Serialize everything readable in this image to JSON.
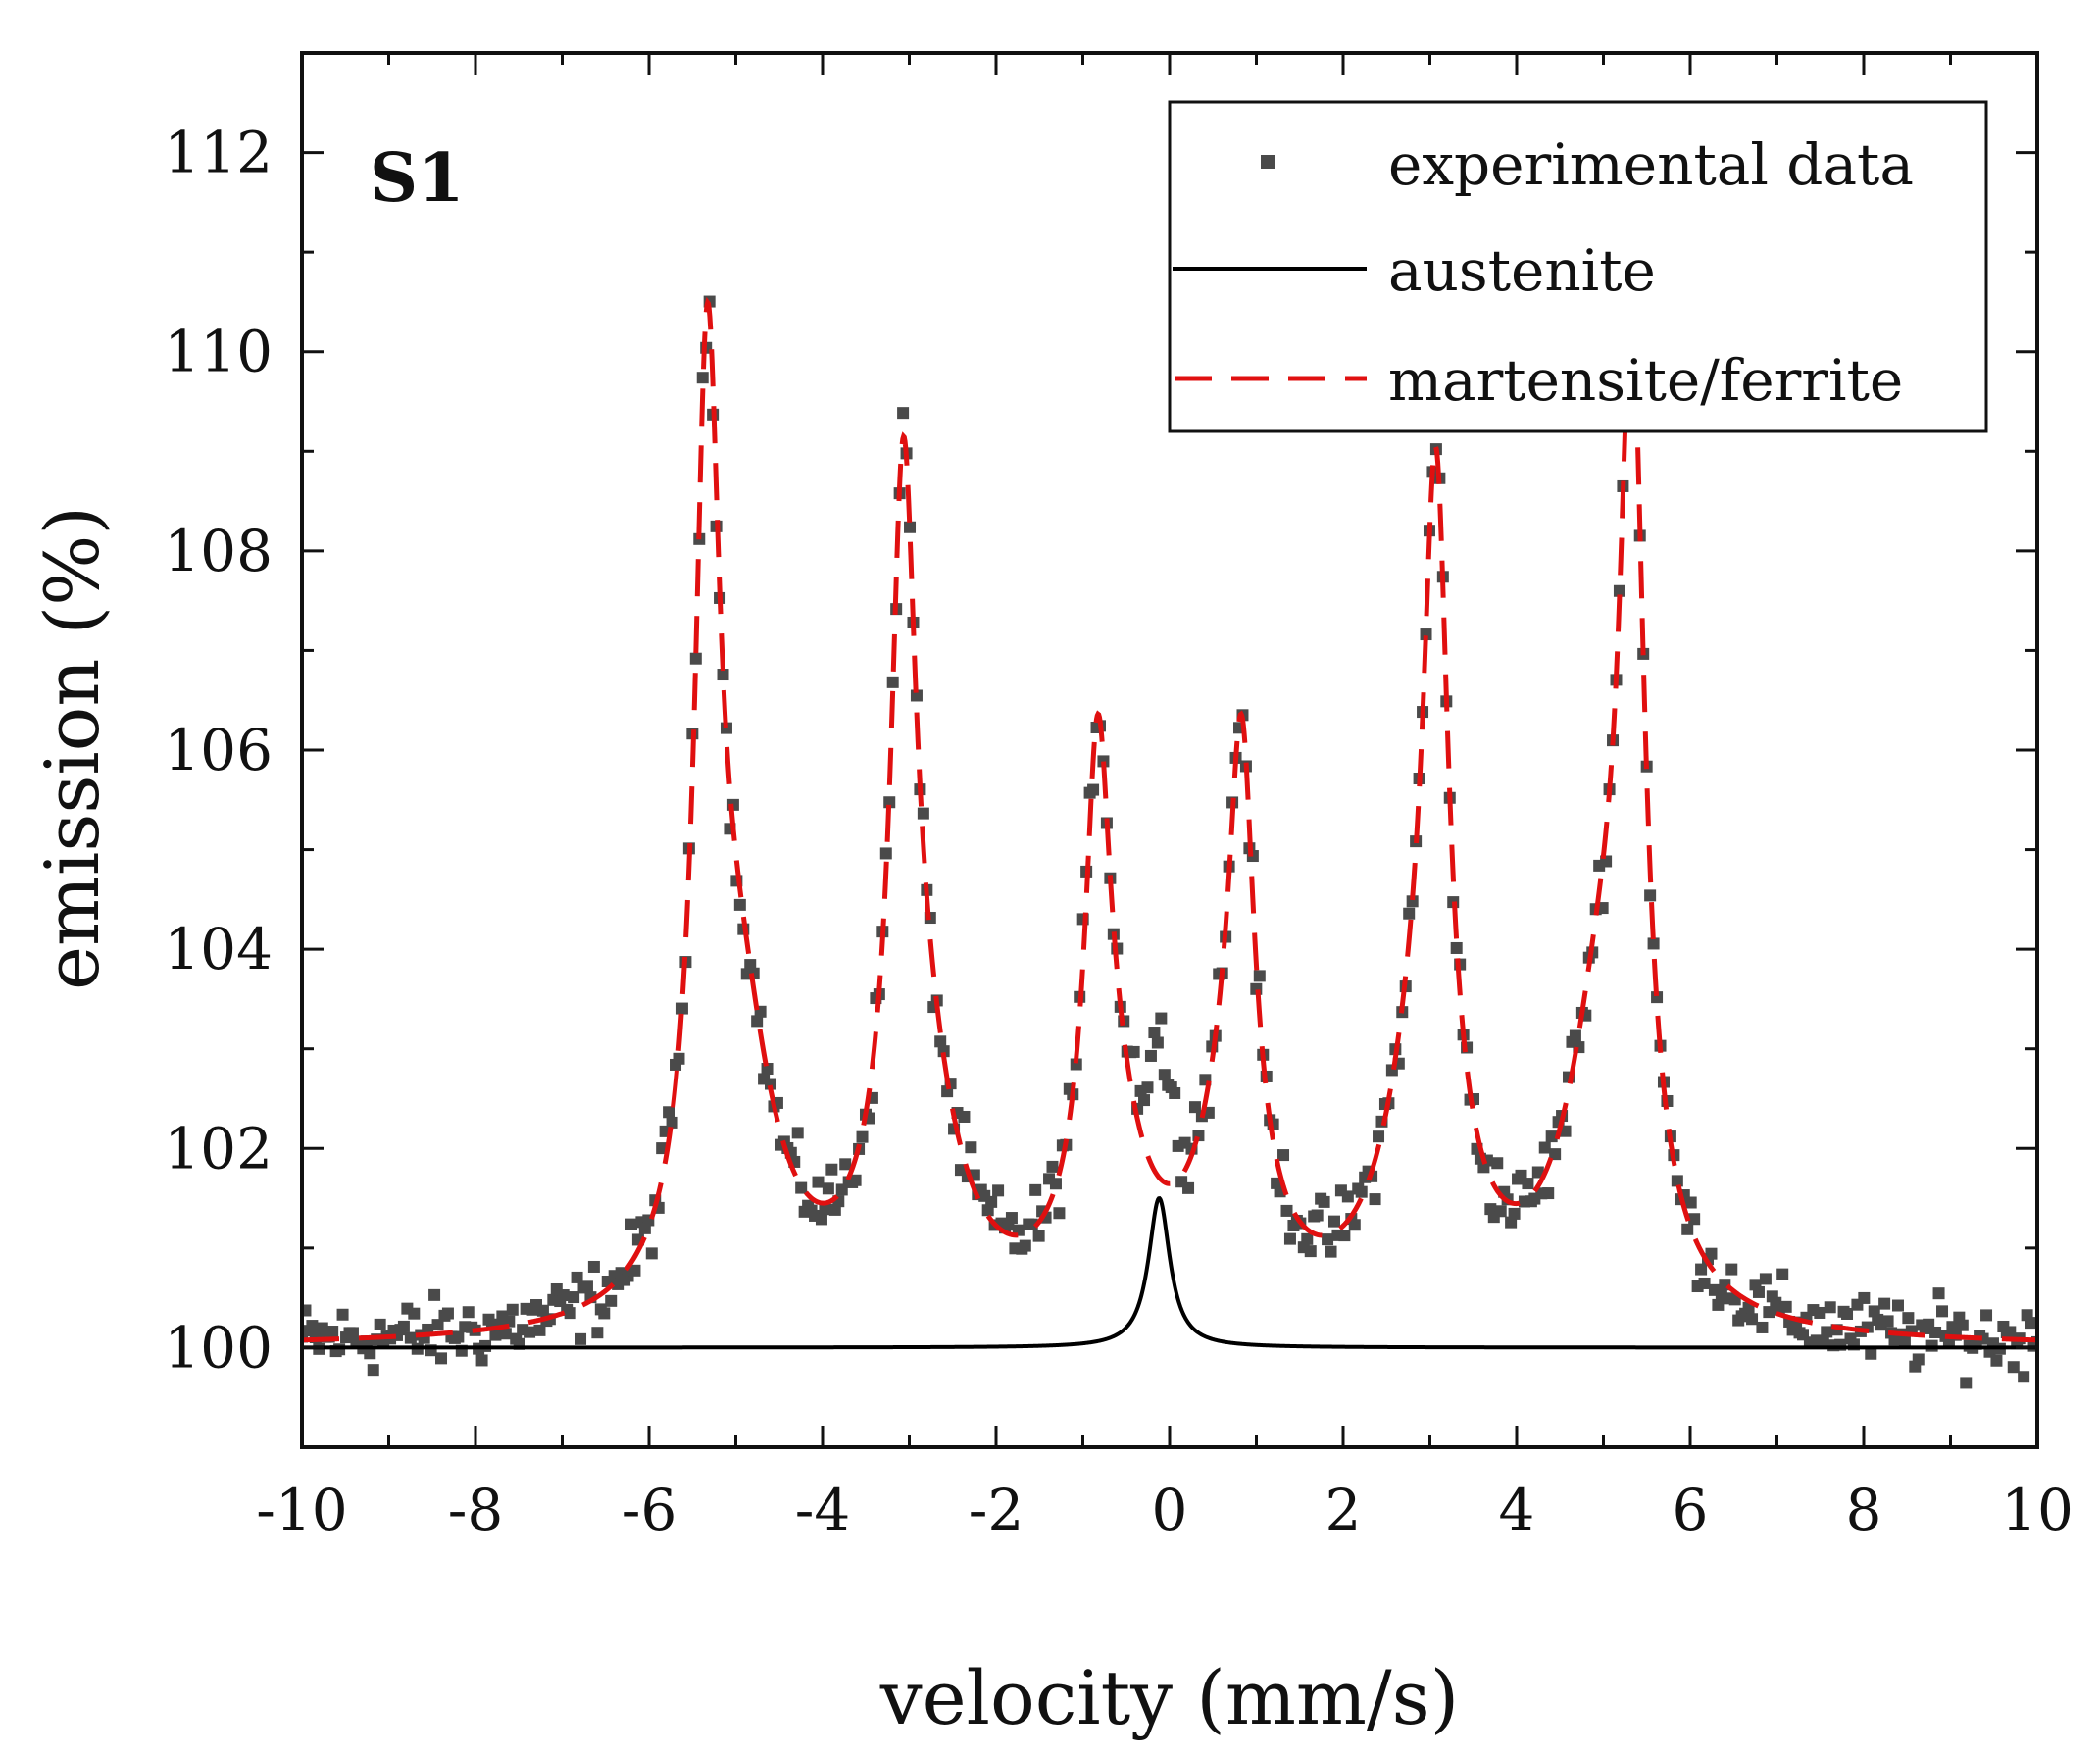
{
  "chart_data": {
    "type": "scatter",
    "title": "",
    "panel_label": "S1",
    "xlabel": "velocity (mm/s)",
    "ylabel": "emission (%)",
    "xlim": [
      -10,
      10
    ],
    "ylim": [
      99,
      113
    ],
    "x_ticks": [
      -10,
      -8,
      -6,
      -4,
      -2,
      0,
      2,
      4,
      6,
      8,
      10
    ],
    "x_tick_labels": [
      "-10",
      "-8",
      "-6",
      "-4",
      "-2",
      "0",
      "2",
      "4",
      "6",
      "8",
      "10"
    ],
    "y_ticks": [
      100,
      102,
      104,
      106,
      108,
      110,
      112
    ],
    "y_tick_labels": [
      "100",
      "102",
      "104",
      "106",
      "108",
      "110",
      "112"
    ],
    "legend": {
      "position": "top-right",
      "entries": [
        {
          "label": "experimental data",
          "style": "square-markers",
          "color": "#4a4a4a"
        },
        {
          "label": "austenite",
          "style": "solid-line",
          "color": "#000000"
        },
        {
          "label": "martensite/ferrite",
          "style": "dashed-line",
          "color": "#e01010"
        }
      ]
    },
    "series": [
      {
        "name": "experimental data",
        "kind": "points",
        "color": "#4a4a4a",
        "x_range": [
          -10,
          10
        ],
        "point_count": 512,
        "noise_amplitude": 0.25,
        "description": "sum of the two fitted components plus measurement scatter"
      },
      {
        "name": "austenite",
        "kind": "lorentzian",
        "color": "#000000",
        "baseline": 100,
        "peaks": [
          {
            "center": -0.12,
            "amplitude": 1.5,
            "hwhm": 0.15
          }
        ]
      },
      {
        "name": "martensite/ferrite",
        "kind": "lorentzian",
        "color": "#e01010",
        "baseline": 100,
        "peaks": [
          {
            "center": -5.33,
            "amplitude": 8.2,
            "hwhm": 0.17
          },
          {
            "center": -3.07,
            "amplitude": 6.6,
            "hwhm": 0.17
          },
          {
            "center": -0.83,
            "amplitude": 4.2,
            "hwhm": 0.17
          },
          {
            "center": 0.83,
            "amplitude": 4.2,
            "hwhm": 0.17
          },
          {
            "center": 3.07,
            "amplitude": 6.5,
            "hwhm": 0.17
          },
          {
            "center": 5.33,
            "amplitude": 8.1,
            "hwhm": 0.17
          },
          {
            "center": -5.0,
            "amplitude": 3.0,
            "hwhm": 0.5
          },
          {
            "center": -2.9,
            "amplitude": 2.4,
            "hwhm": 0.5
          },
          {
            "center": -0.7,
            "amplitude": 1.8,
            "hwhm": 0.45
          },
          {
            "center": 0.7,
            "amplitude": 1.8,
            "hwhm": 0.45
          },
          {
            "center": 2.9,
            "amplitude": 2.4,
            "hwhm": 0.5
          },
          {
            "center": 5.0,
            "amplitude": 3.0,
            "hwhm": 0.5
          }
        ]
      }
    ]
  }
}
